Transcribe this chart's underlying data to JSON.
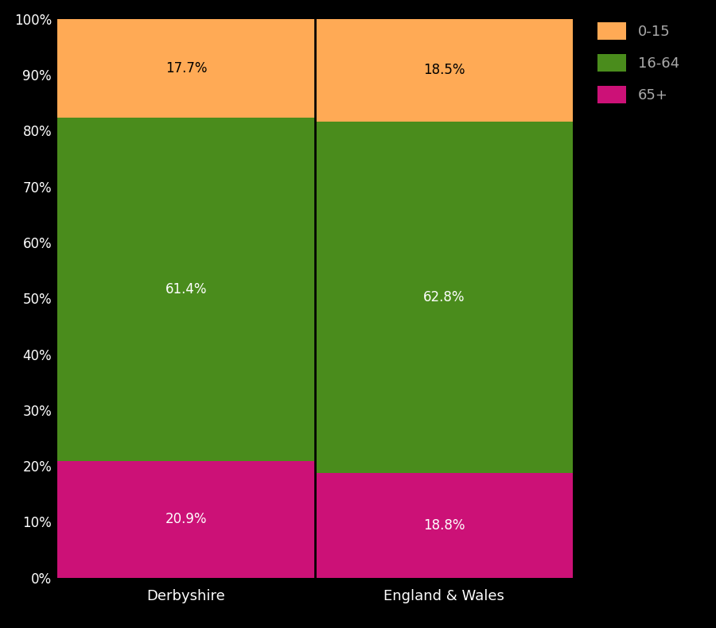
{
  "categories": [
    "Derbyshire",
    "England & Wales"
  ],
  "age_groups": [
    "65+",
    "16-64",
    "0-15"
  ],
  "values": {
    "Derbyshire": [
      20.9,
      61.4,
      17.7
    ],
    "England & Wales": [
      18.8,
      62.8,
      18.5
    ]
  },
  "colors": [
    "#CC1177",
    "#4A8C1C",
    "#FFAA55"
  ],
  "label_colors": [
    "white",
    "white",
    "black"
  ],
  "background_color": "#000000",
  "plot_bg_color": "#000000",
  "axis_color": "#ffffff",
  "tick_color": "#ffffff",
  "label_fontsize": 13,
  "tick_fontsize": 12,
  "annotation_fontsize": 12,
  "bar_width": 1.0,
  "legend_labels": [
    "0-15",
    "16-64",
    "65+"
  ],
  "legend_colors": [
    "#FFAA55",
    "#4A8C1C",
    "#CC1177"
  ],
  "legend_text_color": "#aaaaaa",
  "separator_color": "#000000",
  "grid_color": "#555555"
}
